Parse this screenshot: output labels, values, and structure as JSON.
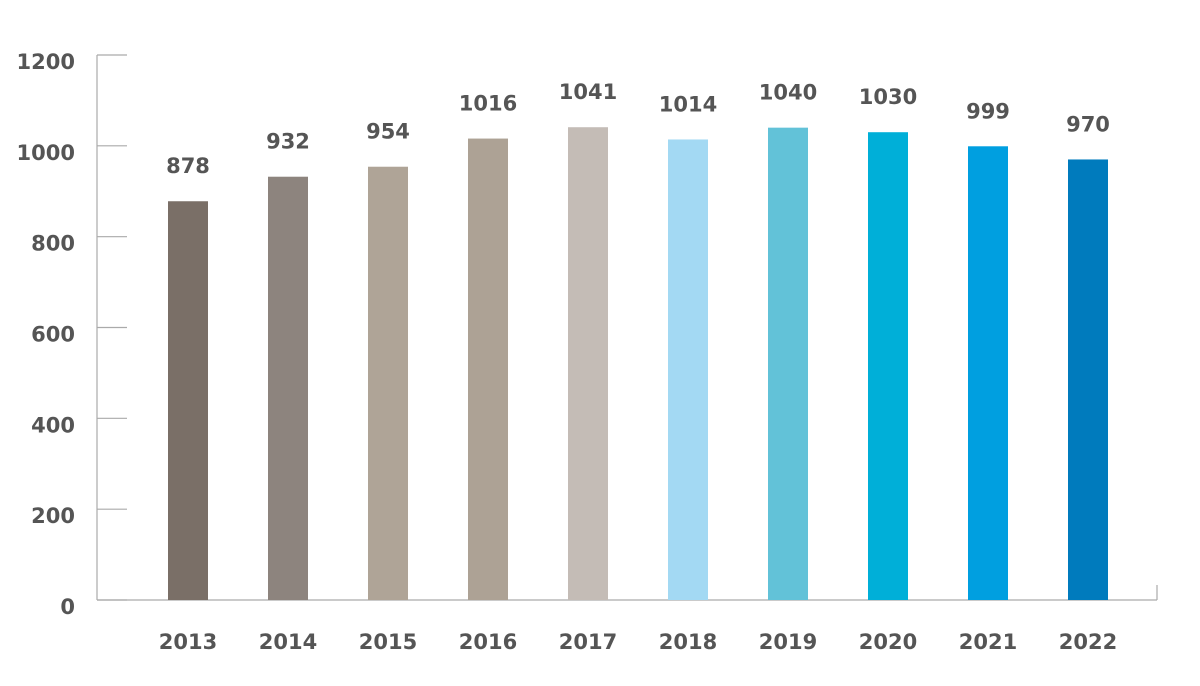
{
  "chart_data": {
    "type": "bar",
    "categories": [
      "2013",
      "2014",
      "2015",
      "2016",
      "2017",
      "2018",
      "2019",
      "2020",
      "2021",
      "2022"
    ],
    "values": [
      878,
      932,
      954,
      1016,
      1041,
      1014,
      1040,
      1030,
      999,
      970
    ],
    "colors": [
      "#7a6f67",
      "#8d847e",
      "#afa497",
      "#ada295",
      "#c4bcb6",
      "#a3d9f3",
      "#62c2d8",
      "#00afd8",
      "#009fe0",
      "#007bbd"
    ],
    "ylim": [
      0,
      1200
    ],
    "yticks": [
      0,
      200,
      400,
      600,
      800,
      1000,
      1200
    ]
  }
}
